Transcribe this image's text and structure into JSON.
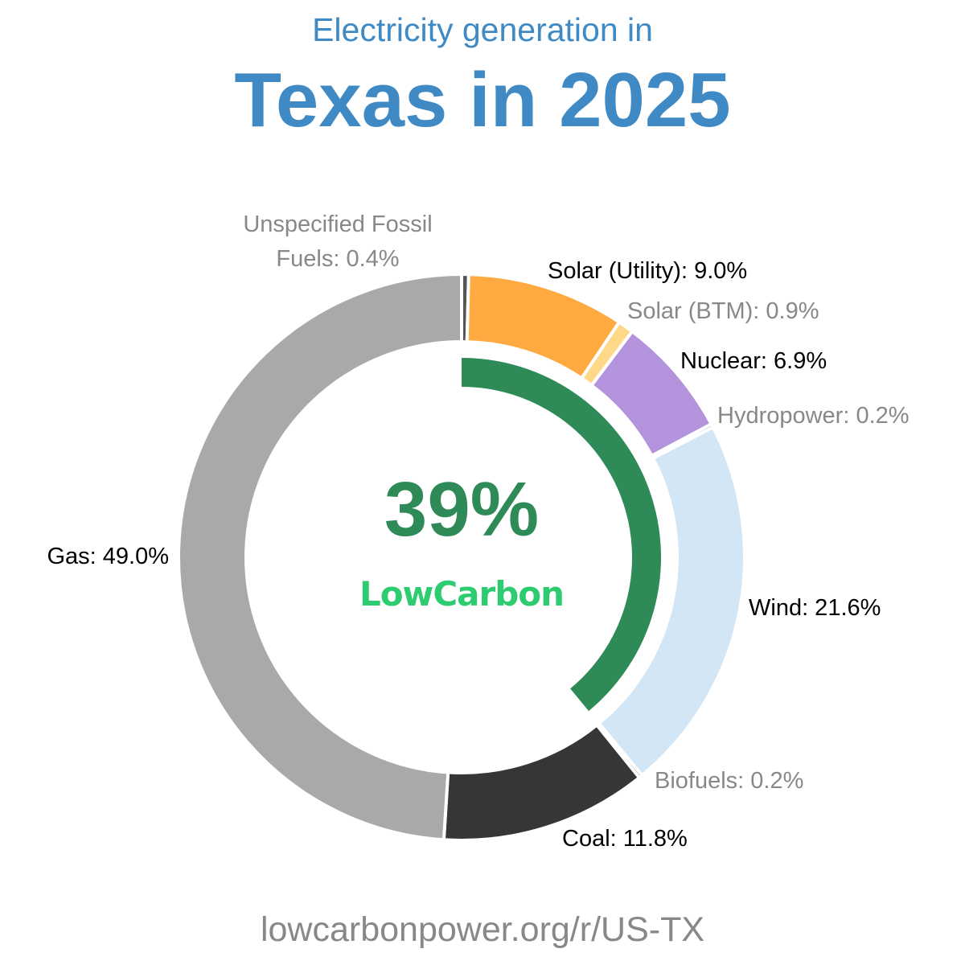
{
  "header": {
    "subtitle": "Electricity generation in",
    "title": "Texas in 2025"
  },
  "footer": {
    "url": "lowcarbonpower.org/r/US-TX"
  },
  "center": {
    "value_text": "39%",
    "low_carbon_fraction": 0.39,
    "brand": "LowCarbon",
    "value_color": "#2e8b57",
    "brand_color": "#2ecc71"
  },
  "chart_data": {
    "type": "donut",
    "title": "Electricity generation in Texas in 2025",
    "start": "top",
    "direction": "clockwise",
    "series": [
      {
        "name": "Unspecified Fossil Fuels",
        "value": 0.4,
        "color": "#555555",
        "label": [
          "Unspecified Fossil",
          "Fuels: 0.4%"
        ],
        "label_color": "#888888"
      },
      {
        "name": "Solar (Utility)",
        "value": 9.0,
        "color": "#ffaa40",
        "label": [
          "Solar (Utility): 9.0%"
        ],
        "label_color": "#000000"
      },
      {
        "name": "Solar (BTM)",
        "value": 0.9,
        "color": "#ffd88a",
        "label": [
          "Solar (BTM): 0.9%"
        ],
        "label_color": "#888888"
      },
      {
        "name": "Nuclear",
        "value": 6.9,
        "color": "#b293dc",
        "label": [
          "Nuclear: 6.9%"
        ],
        "label_color": "#000000"
      },
      {
        "name": "Hydropower",
        "value": 0.2,
        "color": "#3b6db5",
        "label": [
          "Hydropower: 0.2%"
        ],
        "label_color": "#888888"
      },
      {
        "name": "Wind",
        "value": 21.6,
        "color": "#d2e6f6",
        "label": [
          "Wind: 21.6%"
        ],
        "label_color": "#000000"
      },
      {
        "name": "Biofuels",
        "value": 0.2,
        "color": "#7a5a2a",
        "label": [
          "Biofuels: 0.2%"
        ],
        "label_color": "#888888"
      },
      {
        "name": "Coal",
        "value": 11.8,
        "color": "#363636",
        "label": [
          "Coal: 11.8%"
        ],
        "label_color": "#000000"
      },
      {
        "name": "Gas",
        "value": 49.0,
        "color": "#a9a9a9",
        "label": [
          "Gas: 49.0%"
        ],
        "label_color": "#000000"
      }
    ]
  }
}
